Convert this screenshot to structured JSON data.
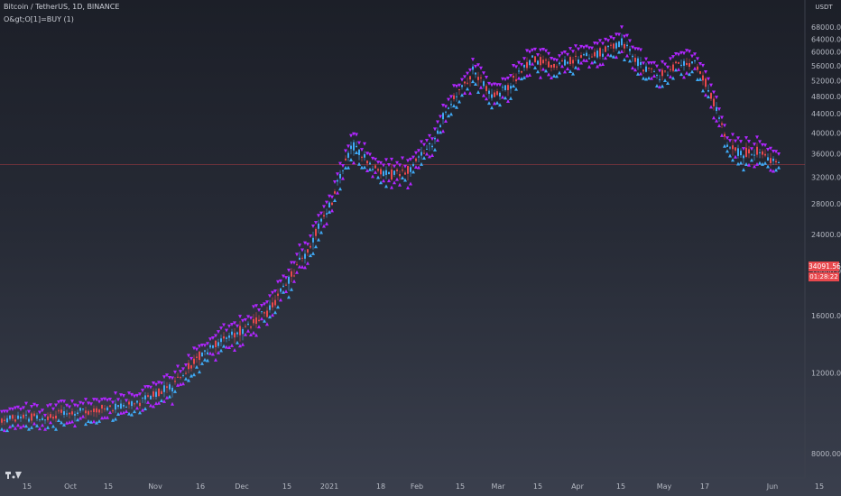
{
  "chart_title": "Bitcoin / TetherUS, 1D, BINANCE",
  "indicator_label": "O&gt;O[1]=BUY (1)",
  "currency": "USDT",
  "last_price": "34091.56",
  "countdown": "01:28:22",
  "colors": {
    "up": "#3fa9f5",
    "down": "#e8484d",
    "signal": "#b026ff",
    "price_line": "#e8484d"
  },
  "chart_data": {
    "type": "candlestick",
    "y_ticks": [
      "68000.00",
      "64000.00",
      "60000.00",
      "56000.00",
      "52000.00",
      "48000.00",
      "44000.00",
      "40000.00",
      "36000.00",
      "32000.00",
      "28000.00",
      "24000.00",
      "20000.00",
      "16000.00",
      "12000.00",
      "8000.00"
    ],
    "x_ticks": [
      "15",
      "Oct",
      "15",
      "Nov",
      "16",
      "Dec",
      "15",
      "2021",
      "18",
      "Feb",
      "15",
      "Mar",
      "15",
      "Apr",
      "15",
      "May",
      "17",
      "Jun",
      "15"
    ],
    "log_scale": true,
    "price_anchors": [
      {
        "x": 0,
        "y": 9500
      },
      {
        "x": 60,
        "y": 9700
      },
      {
        "x": 150,
        "y": 10300
      },
      {
        "x": 190,
        "y": 11200
      },
      {
        "x": 230,
        "y": 13500
      },
      {
        "x": 270,
        "y": 15000
      },
      {
        "x": 300,
        "y": 16500
      },
      {
        "x": 340,
        "y": 22000
      },
      {
        "x": 370,
        "y": 29000
      },
      {
        "x": 390,
        "y": 38000
      },
      {
        "x": 410,
        "y": 34000
      },
      {
        "x": 430,
        "y": 32500
      },
      {
        "x": 450,
        "y": 33000
      },
      {
        "x": 480,
        "y": 38000
      },
      {
        "x": 500,
        "y": 47000
      },
      {
        "x": 525,
        "y": 55000
      },
      {
        "x": 545,
        "y": 48000
      },
      {
        "x": 565,
        "y": 51000
      },
      {
        "x": 590,
        "y": 58000
      },
      {
        "x": 615,
        "y": 56000
      },
      {
        "x": 640,
        "y": 58000
      },
      {
        "x": 665,
        "y": 60000
      },
      {
        "x": 690,
        "y": 63000
      },
      {
        "x": 710,
        "y": 56000
      },
      {
        "x": 730,
        "y": 53000
      },
      {
        "x": 750,
        "y": 56000
      },
      {
        "x": 770,
        "y": 57000
      },
      {
        "x": 785,
        "y": 50000
      },
      {
        "x": 805,
        "y": 38000
      },
      {
        "x": 820,
        "y": 36000
      },
      {
        "x": 840,
        "y": 36500
      },
      {
        "x": 862,
        "y": 34091
      }
    ]
  }
}
